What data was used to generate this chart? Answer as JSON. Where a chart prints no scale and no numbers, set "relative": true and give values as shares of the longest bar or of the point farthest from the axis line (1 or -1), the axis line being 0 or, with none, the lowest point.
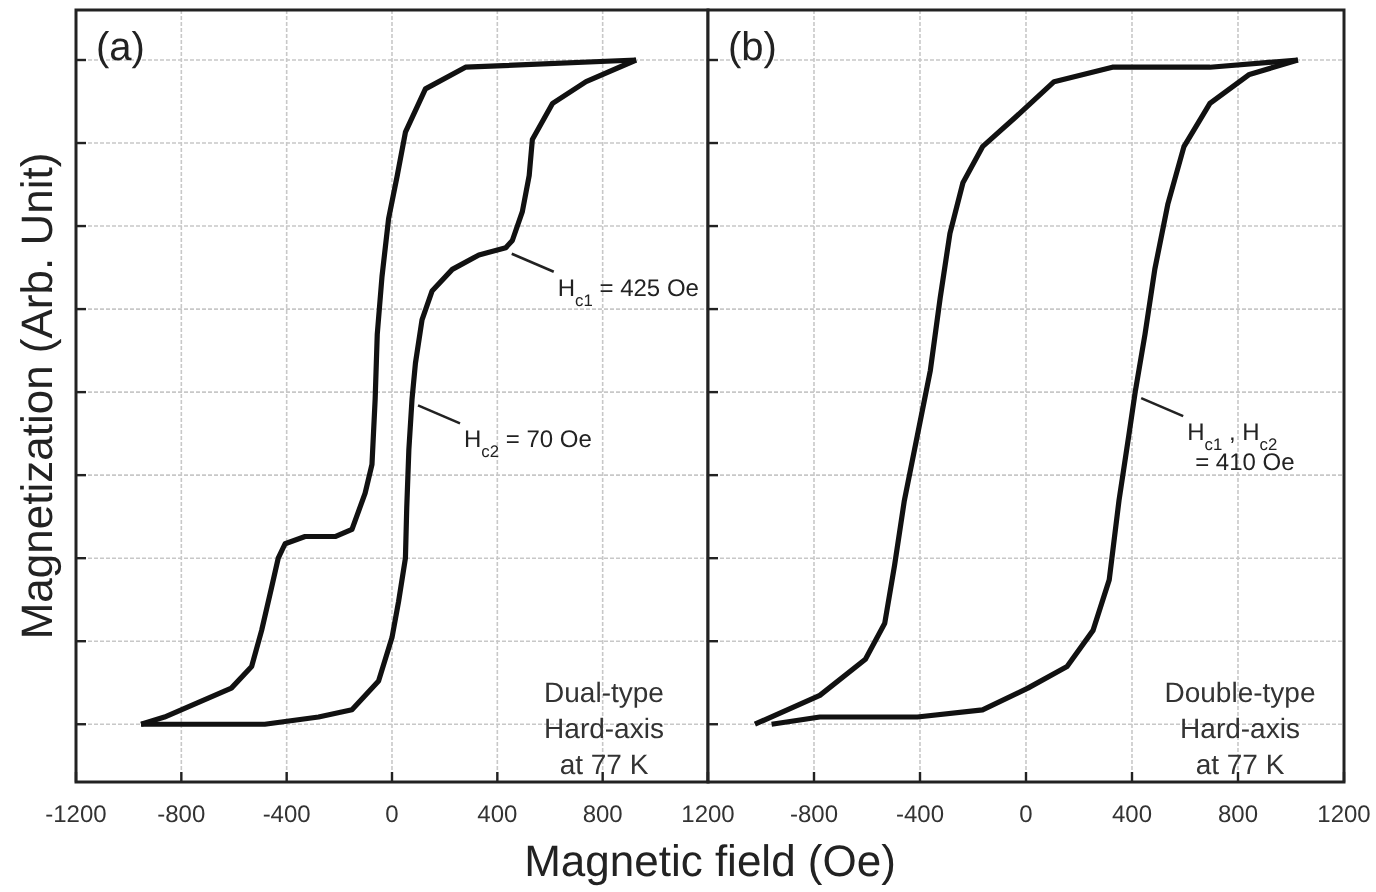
{
  "chart_data": [
    {
      "type": "line",
      "title": "(a)",
      "xlabel": "Magnetic field (Oe)",
      "ylabel": "Magnetization (Arb. Unit)",
      "relative": true,
      "grid": true,
      "line_style": "solid",
      "xlim": [
        -1200,
        1200
      ],
      "xticks": [
        -1200,
        -800,
        -400,
        0,
        400,
        800,
        1200
      ],
      "series": [
        {
          "color": "#111111",
          "x": [
            927,
            279,
            127,
            51,
            20,
            -13,
            -38,
            -56,
            -64,
            -76,
            -102,
            -152,
            -216,
            -330,
            -406,
            -432,
            -457,
            -495,
            -533,
            -610,
            -737,
            -864,
            -953
          ],
          "values": [
            1.0,
            0.99,
            0.96,
            0.9,
            0.84,
            0.78,
            0.7,
            0.62,
            0.53,
            0.44,
            0.4,
            0.35,
            0.34,
            0.34,
            0.33,
            0.31,
            0.27,
            0.21,
            0.16,
            0.13,
            0.11,
            0.09,
            0.08
          ]
        },
        {
          "color": "#111111",
          "x": [
            -953,
            -737,
            -483,
            -279,
            -152,
            -51,
            0,
            25,
            51,
            56,
            64,
            76,
            89,
            114,
            152,
            229,
            330,
            432,
            457,
            495,
            521,
            533,
            610,
            737,
            927
          ],
          "values": [
            0.08,
            0.08,
            0.08,
            0.09,
            0.1,
            0.14,
            0.2,
            0.25,
            0.31,
            0.38,
            0.46,
            0.53,
            0.58,
            0.64,
            0.68,
            0.71,
            0.73,
            0.74,
            0.75,
            0.79,
            0.84,
            0.89,
            0.94,
            0.97,
            1.0
          ]
        }
      ],
      "annotations": [
        {
          "text": "H$_{c1}$ = 425 Oe",
          "x": 432,
          "y": 0.74
        },
        {
          "text": "H$_{c2}$ = 70 Oe",
          "x": 76,
          "y": 0.53
        },
        "Dual-type\nHard-axis\nat 77 K"
      ]
    },
    {
      "type": "line",
      "title": "(b)",
      "relative": true,
      "grid": true,
      "line_style": "solid",
      "xlim": [
        -1200,
        1200
      ],
      "xticks": [
        {
          "value": -1200,
          "label": null
        },
        -800,
        -400,
        0,
        400,
        800,
        1200
      ],
      "series": [
        {
          "color": "#111111",
          "x": [
            1026,
            694,
            326,
            106,
            -42,
            -164,
            -238,
            -287,
            -324,
            -361,
            -410,
            -459,
            -496,
            -533,
            -606,
            -778,
            -1023
          ],
          "values": [
            1.0,
            0.99,
            0.99,
            0.97,
            0.92,
            0.88,
            0.83,
            0.76,
            0.67,
            0.57,
            0.48,
            0.39,
            0.3,
            0.22,
            0.17,
            0.12,
            0.08
          ]
        },
        {
          "color": "#111111",
          "x": [
            -960,
            -778,
            -410,
            -164,
            7,
            155,
            253,
            314,
            351,
            388,
            412,
            449,
            486,
            535,
            596,
            694,
            843,
            1026
          ],
          "values": [
            0.08,
            0.09,
            0.09,
            0.1,
            0.13,
            0.16,
            0.21,
            0.28,
            0.39,
            0.48,
            0.54,
            0.62,
            0.71,
            0.8,
            0.88,
            0.94,
            0.98,
            1.0
          ]
        }
      ],
      "annotations": [
        {
          "text": "H$_{c1}$ , H$_{c2}$\n= 410 Oe",
          "x": 412,
          "y": 0.54
        },
        "Double-type\nHard-axis\nat 77 K"
      ]
    }
  ]
}
